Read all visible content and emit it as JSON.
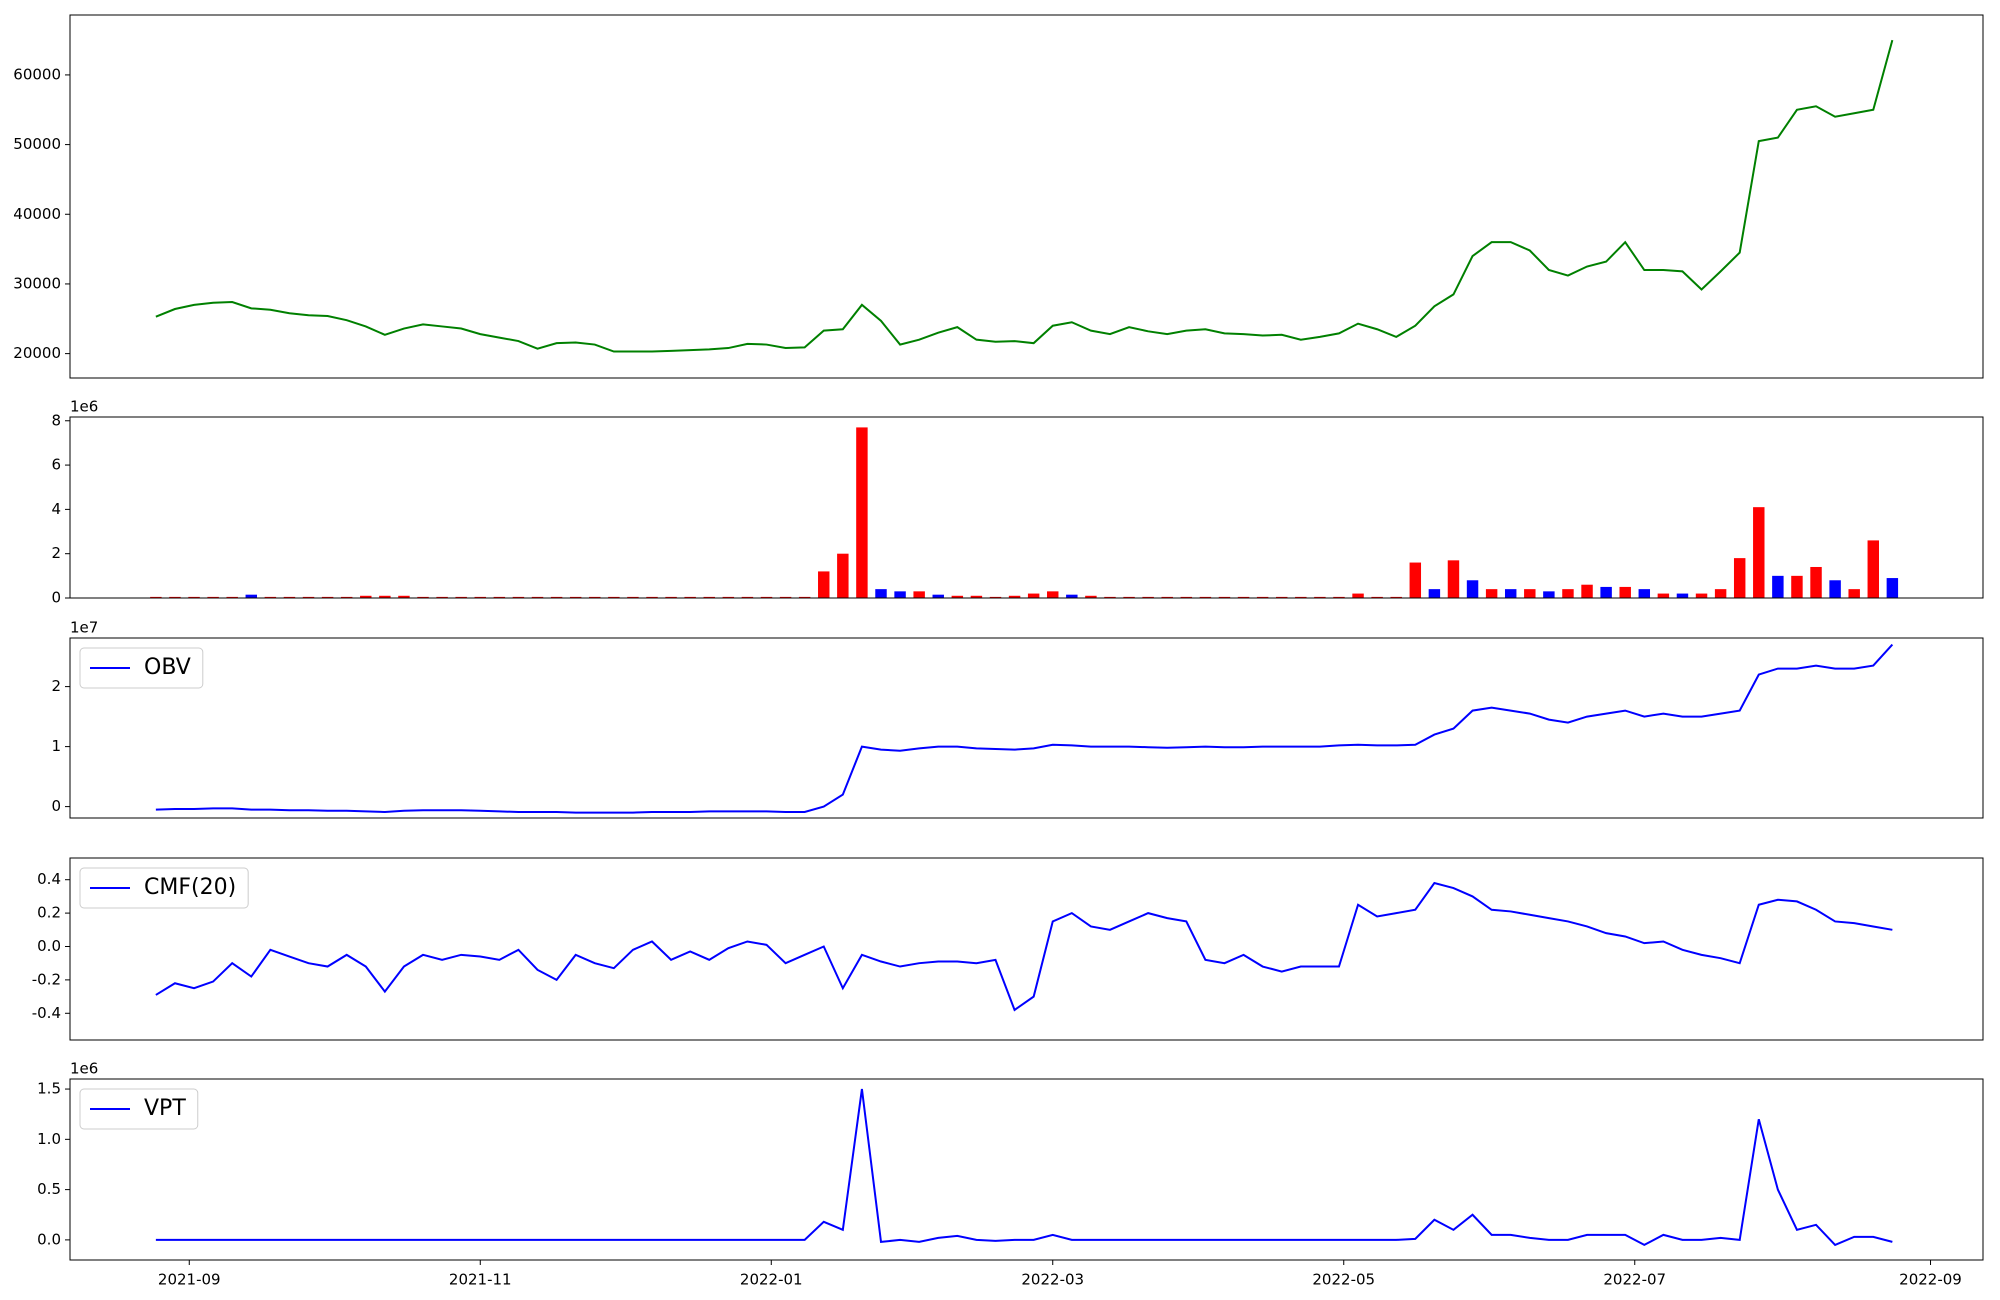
{
  "chart_data": [
    {
      "type": "line",
      "xlim": [
        -18,
        383
      ],
      "ylim": [
        16500,
        68600
      ],
      "yticks": [
        20000,
        30000,
        40000,
        50000,
        60000
      ],
      "x": [
        0,
        4,
        8,
        12,
        16,
        20,
        24,
        28,
        32,
        36,
        40,
        44,
        48,
        52,
        56,
        60,
        64,
        68,
        72,
        76,
        80,
        84,
        88,
        92,
        96,
        100,
        104,
        108,
        112,
        116,
        120,
        124,
        128,
        132,
        136,
        140,
        144,
        148,
        152,
        156,
        160,
        164,
        168,
        172,
        176,
        180,
        184,
        188,
        192,
        196,
        200,
        204,
        208,
        212,
        216,
        220,
        224,
        228,
        232,
        236,
        240,
        244,
        248,
        252,
        256,
        260,
        264,
        268,
        272,
        276,
        280,
        284,
        288,
        292,
        296,
        300,
        304,
        308,
        312,
        316,
        320,
        324,
        328,
        332,
        336,
        340,
        344,
        348,
        352,
        356,
        360,
        364
      ],
      "series": [
        {
          "color": "green",
          "values": [
            25300,
            26400,
            27000,
            27300,
            27400,
            26500,
            26300,
            25800,
            25500,
            25400,
            24800,
            23900,
            22700,
            23600,
            24200,
            23900,
            23600,
            22800,
            22300,
            21800,
            20700,
            21500,
            21600,
            21300,
            20300,
            20300,
            20300,
            20400,
            20500,
            20600,
            20800,
            21400,
            21300,
            20800,
            20900,
            23300,
            23500,
            27000,
            24700,
            21300,
            22000,
            23000,
            23800,
            22000,
            21700,
            21800,
            21500,
            24000,
            24500,
            23300,
            22800,
            23800,
            23200,
            22800,
            23300,
            23500,
            22900,
            22800,
            22600,
            22700,
            22000,
            22400,
            22900,
            24300,
            23500,
            22400,
            24000,
            26800,
            28500,
            34000,
            36000,
            36000,
            34800,
            32000,
            31200,
            32500,
            33200,
            36000,
            32000,
            32000,
            31800,
            29200,
            31800,
            34500,
            50500,
            51000,
            55000,
            55500,
            54000,
            54500,
            55000,
            65000
          ]
        }
      ]
    },
    {
      "type": "bar",
      "xlim": [
        -18,
        383
      ],
      "ylim": [
        0,
        8.17
      ],
      "yticks": [
        0,
        2,
        4,
        6,
        8
      ],
      "y_offset_label": "1e6",
      "x": [
        0,
        4,
        8,
        12,
        16,
        20,
        24,
        28,
        32,
        36,
        40,
        44,
        48,
        52,
        56,
        60,
        64,
        68,
        72,
        76,
        80,
        84,
        88,
        92,
        96,
        100,
        104,
        108,
        112,
        116,
        120,
        124,
        128,
        132,
        136,
        140,
        144,
        148,
        152,
        156,
        160,
        164,
        168,
        172,
        176,
        180,
        184,
        188,
        192,
        196,
        200,
        204,
        208,
        212,
        216,
        220,
        224,
        228,
        232,
        236,
        240,
        244,
        248,
        252,
        256,
        260,
        264,
        268,
        272,
        276,
        280,
        284,
        288,
        292,
        296,
        300,
        304,
        308,
        312,
        316,
        320,
        324,
        328,
        332,
        336,
        340,
        344,
        348,
        352,
        356,
        360,
        364
      ],
      "values": [
        0.05,
        0.05,
        0.05,
        0.05,
        0.05,
        0.15,
        0.05,
        0.05,
        0.05,
        0.05,
        0.05,
        0.1,
        0.1,
        0.1,
        0.05,
        0.05,
        0.05,
        0.05,
        0.05,
        0.05,
        0.05,
        0.05,
        0.05,
        0.05,
        0.05,
        0.05,
        0.05,
        0.05,
        0.05,
        0.05,
        0.05,
        0.05,
        0.05,
        0.05,
        0.05,
        1.2,
        2.0,
        7.7,
        0.4,
        0.3,
        0.3,
        0.15,
        0.1,
        0.1,
        0.05,
        0.1,
        0.2,
        0.3,
        0.15,
        0.1,
        0.05,
        0.05,
        0.05,
        0.05,
        0.05,
        0.05,
        0.05,
        0.05,
        0.05,
        0.05,
        0.05,
        0.05,
        0.05,
        0.2,
        0.05,
        0.05,
        1.6,
        0.4,
        1.7,
        0.8,
        0.4,
        0.4,
        0.4,
        0.3,
        0.4,
        0.6,
        0.5,
        0.5,
        0.4,
        0.2,
        0.2,
        0.2,
        0.4,
        1.8,
        4.1,
        1.0,
        1.0,
        1.4,
        0.8,
        0.4,
        2.6,
        0.9
      ],
      "colors": [
        "red",
        "red",
        "red",
        "red",
        "red",
        "blue",
        "red",
        "red",
        "red",
        "red",
        "red",
        "red",
        "red",
        "red",
        "red",
        "red",
        "red",
        "red",
        "red",
        "red",
        "red",
        "red",
        "red",
        "red",
        "red",
        "red",
        "red",
        "red",
        "red",
        "red",
        "red",
        "red",
        "red",
        "red",
        "red",
        "red",
        "red",
        "red",
        "blue",
        "blue",
        "red",
        "blue",
        "red",
        "red",
        "red",
        "red",
        "red",
        "red",
        "blue",
        "red",
        "red",
        "red",
        "red",
        "red",
        "red",
        "red",
        "red",
        "red",
        "red",
        "red",
        "red",
        "red",
        "red",
        "red",
        "red",
        "red",
        "red",
        "blue",
        "red",
        "blue",
        "red",
        "blue",
        "red",
        "blue",
        "red",
        "red",
        "blue",
        "red",
        "blue",
        "red",
        "blue",
        "red",
        "red",
        "red",
        "red",
        "blue",
        "red",
        "red",
        "blue",
        "red",
        "red",
        "blue"
      ]
    },
    {
      "type": "line",
      "xlim": [
        -18,
        383
      ],
      "ylim": [
        -0.19,
        2.81
      ],
      "yticks": [
        0,
        1,
        2
      ],
      "y_offset_label": "1e7",
      "legend": "upper left",
      "x": [
        0,
        4,
        8,
        12,
        16,
        20,
        24,
        28,
        32,
        36,
        40,
        44,
        48,
        52,
        56,
        60,
        64,
        68,
        72,
        76,
        80,
        84,
        88,
        92,
        96,
        100,
        104,
        108,
        112,
        116,
        120,
        124,
        128,
        132,
        136,
        140,
        144,
        148,
        152,
        156,
        160,
        164,
        168,
        172,
        176,
        180,
        184,
        188,
        192,
        196,
        200,
        204,
        208,
        212,
        216,
        220,
        224,
        228,
        232,
        236,
        240,
        244,
        248,
        252,
        256,
        260,
        264,
        268,
        272,
        276,
        280,
        284,
        288,
        292,
        296,
        300,
        304,
        308,
        312,
        316,
        320,
        324,
        328,
        332,
        336,
        340,
        344,
        348,
        352,
        356,
        360,
        364
      ],
      "series": [
        {
          "name": "OBV",
          "color": "blue",
          "values": [
            -0.05,
            -0.04,
            -0.04,
            -0.03,
            -0.03,
            -0.05,
            -0.05,
            -0.06,
            -0.06,
            -0.07,
            -0.07,
            -0.08,
            -0.09,
            -0.07,
            -0.06,
            -0.06,
            -0.06,
            -0.07,
            -0.08,
            -0.09,
            -0.09,
            -0.09,
            -0.1,
            -0.1,
            -0.1,
            -0.1,
            -0.09,
            -0.09,
            -0.09,
            -0.08,
            -0.08,
            -0.08,
            -0.08,
            -0.09,
            -0.09,
            0.0,
            0.2,
            1.0,
            0.95,
            0.93,
            0.97,
            1.0,
            1.0,
            0.97,
            0.96,
            0.95,
            0.97,
            1.03,
            1.02,
            1.0,
            1.0,
            1.0,
            0.99,
            0.98,
            0.99,
            1.0,
            0.99,
            0.99,
            1.0,
            1.0,
            1.0,
            1.0,
            1.02,
            1.03,
            1.02,
            1.02,
            1.03,
            1.2,
            1.3,
            1.6,
            1.65,
            1.6,
            1.55,
            1.45,
            1.4,
            1.5,
            1.55,
            1.6,
            1.5,
            1.55,
            1.5,
            1.5,
            1.55,
            1.6,
            2.2,
            2.3,
            2.3,
            2.35,
            2.3,
            2.3,
            2.35,
            2.7
          ]
        }
      ]
    },
    {
      "type": "line",
      "xlim": [
        -18,
        383
      ],
      "ylim": [
        -0.56,
        0.53
      ],
      "yticks": [
        -0.4,
        -0.2,
        {
          "value": 0,
          "label": "0.0"
        },
        0.2,
        0.4
      ],
      "legend": "upper left",
      "x": [
        0,
        4,
        8,
        12,
        16,
        20,
        24,
        28,
        32,
        36,
        40,
        44,
        48,
        52,
        56,
        60,
        64,
        68,
        72,
        76,
        80,
        84,
        88,
        92,
        96,
        100,
        104,
        108,
        112,
        116,
        120,
        124,
        128,
        132,
        136,
        140,
        144,
        148,
        152,
        156,
        160,
        164,
        168,
        172,
        176,
        180,
        184,
        188,
        192,
        196,
        200,
        204,
        208,
        212,
        216,
        220,
        224,
        228,
        232,
        236,
        240,
        244,
        248,
        252,
        256,
        260,
        264,
        268,
        272,
        276,
        280,
        284,
        288,
        292,
        296,
        300,
        304,
        308,
        312,
        316,
        320,
        324,
        328,
        332,
        336,
        340,
        344,
        348,
        352,
        356,
        360,
        364
      ],
      "series": [
        {
          "name": "CMF(20)",
          "color": "blue",
          "values": [
            -0.29,
            -0.22,
            -0.25,
            -0.21,
            -0.1,
            -0.18,
            -0.02,
            -0.06,
            -0.1,
            -0.12,
            -0.05,
            -0.12,
            -0.27,
            -0.12,
            -0.05,
            -0.08,
            -0.05,
            -0.06,
            -0.08,
            -0.02,
            -0.14,
            -0.2,
            -0.05,
            -0.1,
            -0.13,
            -0.02,
            0.03,
            -0.08,
            -0.03,
            -0.08,
            -0.01,
            0.03,
            0.01,
            -0.1,
            -0.05,
            0.0,
            -0.25,
            -0.05,
            -0.09,
            -0.12,
            -0.1,
            -0.09,
            -0.09,
            -0.1,
            -0.08,
            -0.38,
            -0.3,
            0.15,
            0.2,
            0.12,
            0.1,
            0.15,
            0.2,
            0.17,
            0.15,
            -0.08,
            -0.1,
            -0.05,
            -0.12,
            -0.15,
            -0.12,
            -0.12,
            -0.12,
            0.25,
            0.18,
            0.2,
            0.22,
            0.38,
            0.35,
            0.3,
            0.22,
            0.21,
            0.19,
            0.17,
            0.15,
            0.12,
            0.08,
            0.06,
            0.02,
            0.03,
            -0.02,
            -0.05,
            -0.07,
            -0.1,
            0.25,
            0.28,
            0.27,
            0.22,
            0.15,
            0.14,
            0.12,
            0.1
          ]
        }
      ]
    },
    {
      "type": "line",
      "xlim": [
        -18,
        383
      ],
      "ylim": [
        -0.2,
        1.6
      ],
      "yticks": [
        {
          "value": 0,
          "label": "0.0"
        },
        0.5,
        {
          "value": 1,
          "label": "1.0"
        },
        1.5
      ],
      "y_offset_label": "1e6",
      "legend": "upper left",
      "xticks": [
        {
          "value": 7,
          "label": "2021-09"
        },
        {
          "value": 68,
          "label": "2021-11"
        },
        {
          "value": 129,
          "label": "2022-01"
        },
        {
          "value": 188,
          "label": "2022-03"
        },
        {
          "value": 249,
          "label": "2022-05"
        },
        {
          "value": 310,
          "label": "2022-07"
        },
        {
          "value": 372,
          "label": "2022-09"
        }
      ],
      "x": [
        0,
        4,
        8,
        12,
        16,
        20,
        24,
        28,
        32,
        36,
        40,
        44,
        48,
        52,
        56,
        60,
        64,
        68,
        72,
        76,
        80,
        84,
        88,
        92,
        96,
        100,
        104,
        108,
        112,
        116,
        120,
        124,
        128,
        132,
        136,
        140,
        144,
        148,
        152,
        156,
        160,
        164,
        168,
        172,
        176,
        180,
        184,
        188,
        192,
        196,
        200,
        204,
        208,
        212,
        216,
        220,
        224,
        228,
        232,
        236,
        240,
        244,
        248,
        252,
        256,
        260,
        264,
        268,
        272,
        276,
        280,
        284,
        288,
        292,
        296,
        300,
        304,
        308,
        312,
        316,
        320,
        324,
        328,
        332,
        336,
        340,
        344,
        348,
        352,
        356,
        360,
        364
      ],
      "series": [
        {
          "name": "VPT",
          "color": "blue",
          "values": [
            0.0,
            0.0,
            0.0,
            0.0,
            0.0,
            0.0,
            0.0,
            0.0,
            0.0,
            0.0,
            0.0,
            0.0,
            0.0,
            0.0,
            0.0,
            0.0,
            0.0,
            0.0,
            0.0,
            0.0,
            0.0,
            0.0,
            0.0,
            0.0,
            0.0,
            0.0,
            0.0,
            0.0,
            0.0,
            0.0,
            0.0,
            0.0,
            0.0,
            0.0,
            0.0,
            0.18,
            0.1,
            1.5,
            -0.02,
            0.0,
            -0.02,
            0.02,
            0.04,
            0.0,
            -0.01,
            0.0,
            0.0,
            0.05,
            0.0,
            0.0,
            0.0,
            0.0,
            0.0,
            0.0,
            0.0,
            0.0,
            0.0,
            0.0,
            0.0,
            0.0,
            0.0,
            0.0,
            0.0,
            0.0,
            0.0,
            0.0,
            0.01,
            0.2,
            0.1,
            0.25,
            0.05,
            0.05,
            0.02,
            0.0,
            0.0,
            0.05,
            0.05,
            0.05,
            -0.05,
            0.05,
            0.0,
            0.0,
            0.02,
            0.0,
            1.2,
            0.5,
            0.1,
            0.15,
            -0.05,
            0.03,
            0.03,
            -0.02
          ]
        }
      ]
    }
  ]
}
